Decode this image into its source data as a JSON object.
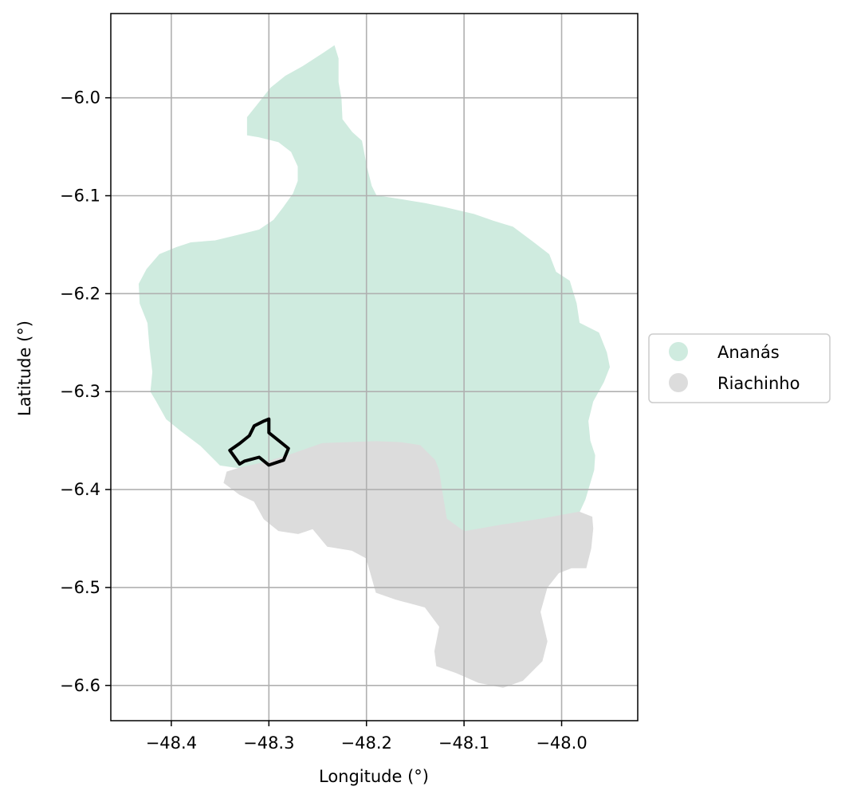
{
  "chart_data": {
    "type": "map",
    "xlabel": "Longitude (°)",
    "ylabel": "Latitude (°)",
    "xlim": [
      -48.462,
      -47.922
    ],
    "ylim": [
      -6.636,
      -5.914
    ],
    "x_ticks": [
      -48.4,
      -48.3,
      -48.2,
      -48.1,
      -48.0
    ],
    "y_ticks": [
      -6.0,
      -6.1,
      -6.2,
      -6.3,
      -6.4,
      -6.5,
      -6.6
    ],
    "x_tick_labels": [
      "−48.4",
      "−48.3",
      "−48.2",
      "−48.1",
      "−48.0"
    ],
    "y_tick_labels": [
      "−6.0",
      "−6.1",
      "−6.2",
      "−6.3",
      "−6.4",
      "−6.5",
      "−6.6"
    ],
    "grid": true,
    "legend_position": "center-right-outside",
    "regions": [
      {
        "name": "Ananás",
        "color": "#cfebdf",
        "polygon": [
          [
            -48.233,
            -5.947
          ],
          [
            -48.229,
            -5.96
          ],
          [
            -48.229,
            -5.984
          ],
          [
            -48.226,
            -6.001
          ],
          [
            -48.225,
            -6.022
          ],
          [
            -48.215,
            -6.035
          ],
          [
            -48.205,
            -6.044
          ],
          [
            -48.2,
            -6.07
          ],
          [
            -48.195,
            -6.09
          ],
          [
            -48.19,
            -6.1
          ],
          [
            -48.17,
            -6.103
          ],
          [
            -48.14,
            -6.108
          ],
          [
            -48.12,
            -6.112
          ],
          [
            -48.09,
            -6.119
          ],
          [
            -48.07,
            -6.126
          ],
          [
            -48.05,
            -6.132
          ],
          [
            -48.03,
            -6.147
          ],
          [
            -48.013,
            -6.16
          ],
          [
            -48.006,
            -6.178
          ],
          [
            -47.992,
            -6.187
          ],
          [
            -47.985,
            -6.21
          ],
          [
            -47.982,
            -6.23
          ],
          [
            -47.962,
            -6.24
          ],
          [
            -47.954,
            -6.26
          ],
          [
            -47.951,
            -6.275
          ],
          [
            -47.957,
            -6.29
          ],
          [
            -47.968,
            -6.31
          ],
          [
            -47.973,
            -6.33
          ],
          [
            -47.971,
            -6.35
          ],
          [
            -47.966,
            -6.365
          ],
          [
            -47.967,
            -6.38
          ],
          [
            -47.976,
            -6.41
          ],
          [
            -47.982,
            -6.423
          ],
          [
            -48.02,
            -6.43
          ],
          [
            -48.06,
            -6.436
          ],
          [
            -48.1,
            -6.443
          ],
          [
            -48.118,
            -6.43
          ],
          [
            -48.123,
            -6.4
          ],
          [
            -48.126,
            -6.38
          ],
          [
            -48.13,
            -6.37
          ],
          [
            -48.145,
            -6.355
          ],
          [
            -48.165,
            -6.352
          ],
          [
            -48.19,
            -6.351
          ],
          [
            -48.22,
            -6.352
          ],
          [
            -48.245,
            -6.353
          ],
          [
            -48.28,
            -6.365
          ],
          [
            -48.303,
            -6.372
          ],
          [
            -48.33,
            -6.378
          ],
          [
            -48.35,
            -6.375
          ],
          [
            -48.37,
            -6.355
          ],
          [
            -48.39,
            -6.34
          ],
          [
            -48.405,
            -6.328
          ],
          [
            -48.415,
            -6.31
          ],
          [
            -48.421,
            -6.3
          ],
          [
            -48.419,
            -6.28
          ],
          [
            -48.422,
            -6.255
          ],
          [
            -48.424,
            -6.23
          ],
          [
            -48.432,
            -6.21
          ],
          [
            -48.433,
            -6.19
          ],
          [
            -48.425,
            -6.175
          ],
          [
            -48.412,
            -6.16
          ],
          [
            -48.395,
            -6.153
          ],
          [
            -48.38,
            -6.148
          ],
          [
            -48.355,
            -6.146
          ],
          [
            -48.33,
            -6.14
          ],
          [
            -48.31,
            -6.135
          ],
          [
            -48.295,
            -6.125
          ],
          [
            -48.285,
            -6.112
          ],
          [
            -48.275,
            -6.098
          ],
          [
            -48.27,
            -6.085
          ],
          [
            -48.27,
            -6.07
          ],
          [
            -48.277,
            -6.055
          ],
          [
            -48.29,
            -6.045
          ],
          [
            -48.31,
            -6.04
          ],
          [
            -48.322,
            -6.038
          ],
          [
            -48.322,
            -6.02
          ],
          [
            -48.31,
            -6.005
          ],
          [
            -48.298,
            -5.99
          ],
          [
            -48.283,
            -5.978
          ],
          [
            -48.265,
            -5.968
          ],
          [
            -48.245,
            -5.955
          ]
        ]
      },
      {
        "name": "Riachinho",
        "color": "#dcdcdc",
        "polygon": [
          [
            -48.343,
            -6.382
          ],
          [
            -48.33,
            -6.378
          ],
          [
            -48.303,
            -6.372
          ],
          [
            -48.28,
            -6.365
          ],
          [
            -48.245,
            -6.353
          ],
          [
            -48.22,
            -6.352
          ],
          [
            -48.19,
            -6.351
          ],
          [
            -48.165,
            -6.352
          ],
          [
            -48.145,
            -6.355
          ],
          [
            -48.13,
            -6.37
          ],
          [
            -48.126,
            -6.38
          ],
          [
            -48.123,
            -6.4
          ],
          [
            -48.118,
            -6.43
          ],
          [
            -48.1,
            -6.443
          ],
          [
            -48.06,
            -6.436
          ],
          [
            -48.02,
            -6.43
          ],
          [
            -47.982,
            -6.423
          ],
          [
            -47.969,
            -6.428
          ],
          [
            -47.968,
            -6.44
          ],
          [
            -47.97,
            -6.46
          ],
          [
            -47.975,
            -6.48
          ],
          [
            -47.99,
            -6.48
          ],
          [
            -48.003,
            -6.485
          ],
          [
            -48.015,
            -6.5
          ],
          [
            -48.022,
            -6.525
          ],
          [
            -48.015,
            -6.555
          ],
          [
            -48.02,
            -6.575
          ],
          [
            -48.04,
            -6.595
          ],
          [
            -48.06,
            -6.602
          ],
          [
            -48.085,
            -6.597
          ],
          [
            -48.108,
            -6.587
          ],
          [
            -48.128,
            -6.58
          ],
          [
            -48.13,
            -6.565
          ],
          [
            -48.125,
            -6.54
          ],
          [
            -48.14,
            -6.52
          ],
          [
            -48.17,
            -6.512
          ],
          [
            -48.19,
            -6.505
          ],
          [
            -48.2,
            -6.47
          ],
          [
            -48.215,
            -6.462
          ],
          [
            -48.24,
            -6.458
          ],
          [
            -48.255,
            -6.44
          ],
          [
            -48.27,
            -6.445
          ],
          [
            -48.29,
            -6.442
          ],
          [
            -48.305,
            -6.43
          ],
          [
            -48.315,
            -6.412
          ],
          [
            -48.33,
            -6.405
          ],
          [
            -48.346,
            -6.393
          ]
        ]
      }
    ],
    "highlight_outline": {
      "color": "#000000",
      "polygon": [
        [
          -48.3,
          -6.328
        ],
        [
          -48.3,
          -6.342
        ],
        [
          -48.29,
          -6.35
        ],
        [
          -48.28,
          -6.358
        ],
        [
          -48.285,
          -6.37
        ],
        [
          -48.3,
          -6.375
        ],
        [
          -48.31,
          -6.367
        ],
        [
          -48.325,
          -6.371
        ],
        [
          -48.33,
          -6.374
        ],
        [
          -48.34,
          -6.36
        ],
        [
          -48.33,
          -6.353
        ],
        [
          -48.32,
          -6.345
        ],
        [
          -48.315,
          -6.335
        ],
        [
          -48.305,
          -6.33
        ]
      ]
    },
    "legend": [
      {
        "label": "Ananás",
        "color": "#cfebdf"
      },
      {
        "label": "Riachinho",
        "color": "#dcdcdc"
      }
    ]
  }
}
